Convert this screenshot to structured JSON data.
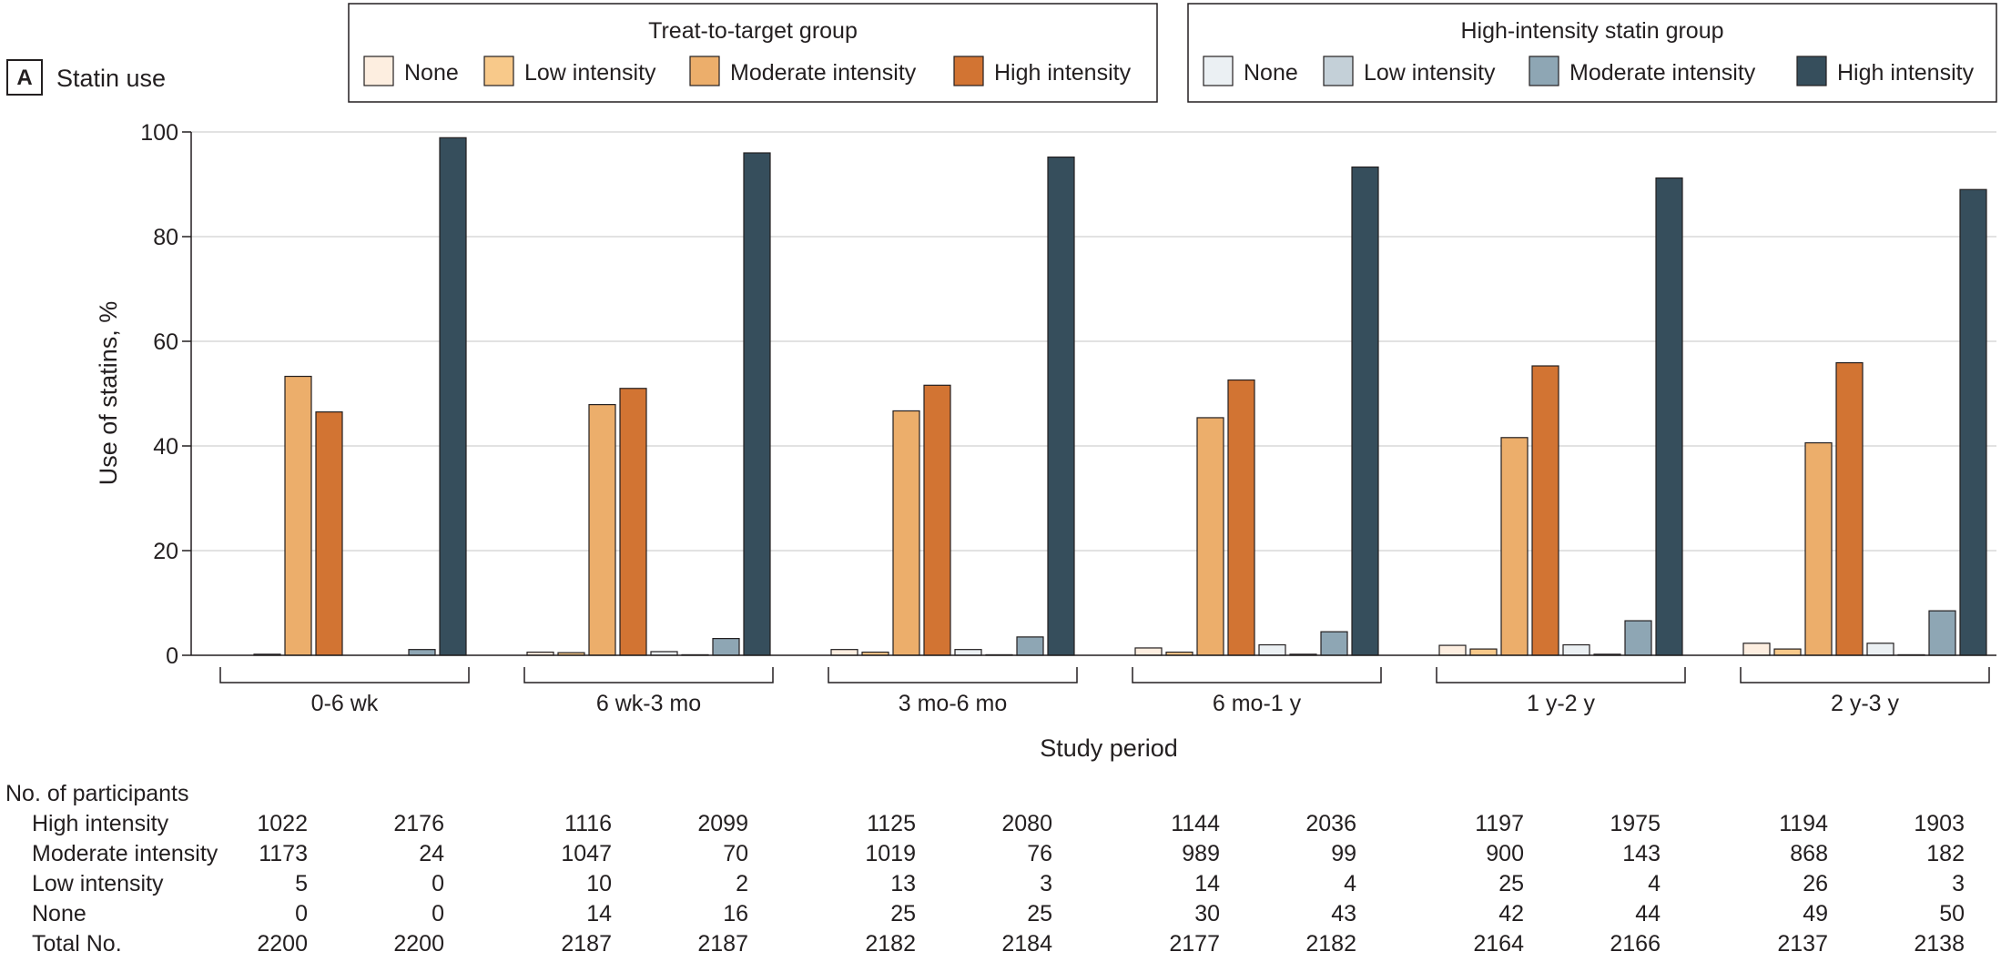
{
  "panel": {
    "letter": "A",
    "title": "Statin use"
  },
  "legend": {
    "groups": [
      {
        "title": "Treat-to-target group",
        "items": [
          {
            "label": "None",
            "color": "#fdeee0"
          },
          {
            "label": "Low intensity",
            "color": "#f8c98a"
          },
          {
            "label": "Moderate intensity",
            "color": "#ecae6b"
          },
          {
            "label": "High intensity",
            "color": "#d27433"
          }
        ]
      },
      {
        "title": "High-intensity statin group",
        "items": [
          {
            "label": "None",
            "color": "#ebf0f3"
          },
          {
            "label": "Low intensity",
            "color": "#c4d0d8"
          },
          {
            "label": "Moderate intensity",
            "color": "#8ea6b4"
          },
          {
            "label": "High intensity",
            "color": "#364e5c"
          }
        ]
      }
    ]
  },
  "chart_data": {
    "type": "bar",
    "ylabel": "Use of statins, %",
    "xlabel": "Study period",
    "ylim": [
      0,
      100
    ],
    "yticks": [
      0,
      20,
      40,
      60,
      80,
      100
    ],
    "grid": true,
    "categories": [
      "0-6 wk",
      "6 wk-3 mo",
      "3 mo-6 mo",
      "6 mo-1 y",
      "1 y-2 y",
      "2 y-3 y"
    ],
    "groups": [
      {
        "name": "Treat-to-target group",
        "series": [
          {
            "name": "None",
            "color": "#fdeee0",
            "values": [
              0,
              0.6,
              1.1,
              1.4,
              1.9,
              2.3
            ]
          },
          {
            "name": "Low intensity",
            "color": "#f8c98a",
            "values": [
              0.2,
              0.5,
              0.6,
              0.6,
              1.2,
              1.2
            ]
          },
          {
            "name": "Moderate intensity",
            "color": "#ecae6b",
            "values": [
              53.3,
              47.9,
              46.7,
              45.4,
              41.6,
              40.6
            ]
          },
          {
            "name": "High intensity",
            "color": "#d27433",
            "values": [
              46.5,
              51.0,
              51.6,
              52.6,
              55.3,
              55.9
            ]
          }
        ]
      },
      {
        "name": "High-intensity statin group",
        "series": [
          {
            "name": "None",
            "color": "#ebf0f3",
            "values": [
              0,
              0.7,
              1.1,
              2.0,
              2.0,
              2.3
            ]
          },
          {
            "name": "Low intensity",
            "color": "#c4d0d8",
            "values": [
              0,
              0.1,
              0.1,
              0.2,
              0.2,
              0.1
            ]
          },
          {
            "name": "Moderate intensity",
            "color": "#8ea6b4",
            "values": [
              1.1,
              3.2,
              3.5,
              4.5,
              6.6,
              8.5
            ]
          },
          {
            "name": "High intensity",
            "color": "#364e5c",
            "values": [
              98.9,
              96.0,
              95.2,
              93.3,
              91.2,
              89.0
            ]
          }
        ]
      }
    ]
  },
  "participants": {
    "heading": "No. of participants",
    "rows": [
      {
        "label": "High intensity",
        "values": [
          "1022",
          "2176",
          "1116",
          "2099",
          "1125",
          "2080",
          "1144",
          "2036",
          "1197",
          "1975",
          "1194",
          "1903"
        ]
      },
      {
        "label": "Moderate intensity",
        "values": [
          "1173",
          "24",
          "1047",
          "70",
          "1019",
          "76",
          "989",
          "99",
          "900",
          "143",
          "868",
          "182"
        ]
      },
      {
        "label": "Low intensity",
        "values": [
          "5",
          "0",
          "10",
          "2",
          "13",
          "3",
          "14",
          "4",
          "25",
          "4",
          "26",
          "3"
        ]
      },
      {
        "label": "None",
        "values": [
          "0",
          "0",
          "14",
          "16",
          "25",
          "25",
          "30",
          "43",
          "42",
          "44",
          "49",
          "50"
        ]
      },
      {
        "label": "Total No.",
        "values": [
          "2200",
          "2200",
          "2187",
          "2187",
          "2182",
          "2184",
          "2177",
          "2182",
          "2164",
          "2166",
          "2137",
          "2138"
        ]
      }
    ]
  }
}
